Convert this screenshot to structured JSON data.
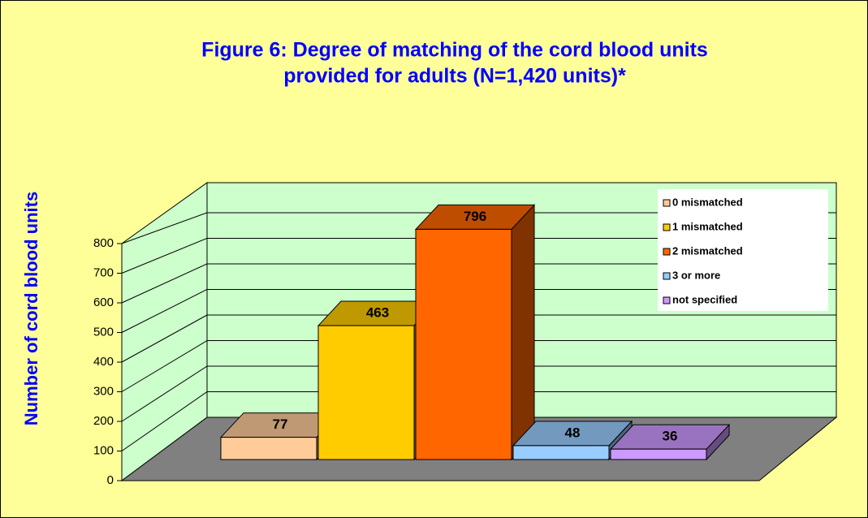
{
  "chart_data": {
    "type": "bar3d",
    "title": [
      "Figure 6: Degree of matching of the cord blood units",
      "provided for adults (N=1,420 units)*"
    ],
    "y_label": "Number of cord blood units",
    "categories": [
      "0 mismatched",
      "1 mismatched",
      "2 mismatched",
      "3 or more",
      "not specified"
    ],
    "values": [
      77,
      463,
      796,
      48,
      36
    ],
    "colors": [
      "#ffcc99",
      "#ffcc00",
      "#ff6600",
      "#99ccff",
      "#cc99ff"
    ],
    "ylim": [
      0,
      800
    ],
    "yticks": [
      0,
      100,
      200,
      300,
      400,
      500,
      600,
      700,
      800
    ],
    "grid": true,
    "legend": "upper right"
  }
}
